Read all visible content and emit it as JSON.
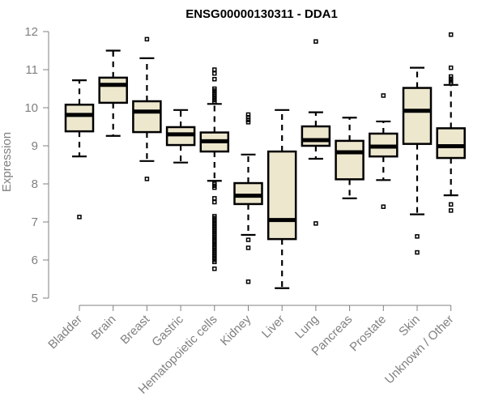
{
  "chart_data": {
    "type": "boxplot",
    "title": "ENSG00000130311 - DDA1",
    "xlabel": "",
    "ylabel": "Expression",
    "ylim": [
      5,
      12
    ],
    "yticks": [
      5,
      6,
      7,
      8,
      9,
      10,
      11,
      12
    ],
    "grid": false,
    "legend": "none",
    "box_color": "#EDE7CE",
    "line_color": "#000000",
    "axis_color": "#808080",
    "categories": [
      "Bladder",
      "Brain",
      "Breast",
      "Gastric",
      "Hematopoietic cells",
      "Kidney",
      "Liver",
      "Lung",
      "Pancreas",
      "Prostate",
      "Skin",
      "Unknown / Other"
    ],
    "boxes": [
      {
        "name": "Bladder",
        "whisker_low": 8.72,
        "q1": 9.38,
        "median": 9.81,
        "q3": 10.08,
        "whisker_high": 10.72,
        "outliers": [
          7.13
        ]
      },
      {
        "name": "Brain",
        "whisker_low": 9.26,
        "q1": 10.13,
        "median": 10.6,
        "q3": 10.79,
        "whisker_high": 11.5,
        "outliers": []
      },
      {
        "name": "Breast",
        "whisker_low": 8.6,
        "q1": 9.36,
        "median": 9.9,
        "q3": 10.17,
        "whisker_high": 11.3,
        "outliers": [
          11.8,
          8.13
        ]
      },
      {
        "name": "Gastric",
        "whisker_low": 8.56,
        "q1": 9.02,
        "median": 9.3,
        "q3": 9.49,
        "whisker_high": 9.94,
        "outliers": []
      },
      {
        "name": "Hematopoietic cells",
        "whisker_low": 8.08,
        "q1": 8.85,
        "median": 9.12,
        "q3": 9.35,
        "whisker_high": 10.1,
        "outliers": [
          11.0,
          10.9,
          10.75,
          10.5,
          10.45,
          10.4,
          10.35,
          10.3,
          10.25,
          10.2,
          10.15,
          8.0,
          7.95,
          7.9,
          7.62,
          7.52,
          7.15,
          7.1,
          7.05,
          7.0,
          6.95,
          6.9,
          6.85,
          6.8,
          6.75,
          6.7,
          6.65,
          6.6,
          6.55,
          6.5,
          6.45,
          6.4,
          6.35,
          6.3,
          6.25,
          6.2,
          6.15,
          6.1,
          6.05,
          6.0,
          5.95,
          5.77
        ]
      },
      {
        "name": "Kidney",
        "whisker_low": 6.66,
        "q1": 7.47,
        "median": 7.69,
        "q3": 8.02,
        "whisker_high": 8.77,
        "outliers": [
          9.82,
          9.75,
          9.68,
          9.62,
          6.53,
          6.32,
          5.43
        ]
      },
      {
        "name": "Liver",
        "whisker_low": 5.26,
        "q1": 6.55,
        "median": 7.05,
        "q3": 8.85,
        "whisker_high": 9.94,
        "outliers": []
      },
      {
        "name": "Lung",
        "whisker_low": 8.66,
        "q1": 9.0,
        "median": 9.15,
        "q3": 9.51,
        "whisker_high": 9.88,
        "outliers": [
          11.74,
          6.96
        ]
      },
      {
        "name": "Pancreas",
        "whisker_low": 7.62,
        "q1": 8.12,
        "median": 8.83,
        "q3": 9.13,
        "whisker_high": 9.74,
        "outliers": []
      },
      {
        "name": "Prostate",
        "whisker_low": 8.1,
        "q1": 8.72,
        "median": 8.98,
        "q3": 9.32,
        "whisker_high": 9.64,
        "outliers": [
          10.32,
          7.4
        ]
      },
      {
        "name": "Skin",
        "whisker_low": 7.2,
        "q1": 9.05,
        "median": 9.92,
        "q3": 10.52,
        "whisker_high": 11.05,
        "outliers": [
          6.62,
          6.2
        ]
      },
      {
        "name": "Unknown / Other",
        "whisker_low": 7.7,
        "q1": 8.68,
        "median": 8.99,
        "q3": 9.46,
        "whisker_high": 10.6,
        "outliers": [
          11.92,
          11.05,
          10.82,
          10.76,
          10.7,
          10.65,
          7.46,
          7.3
        ]
      }
    ]
  }
}
